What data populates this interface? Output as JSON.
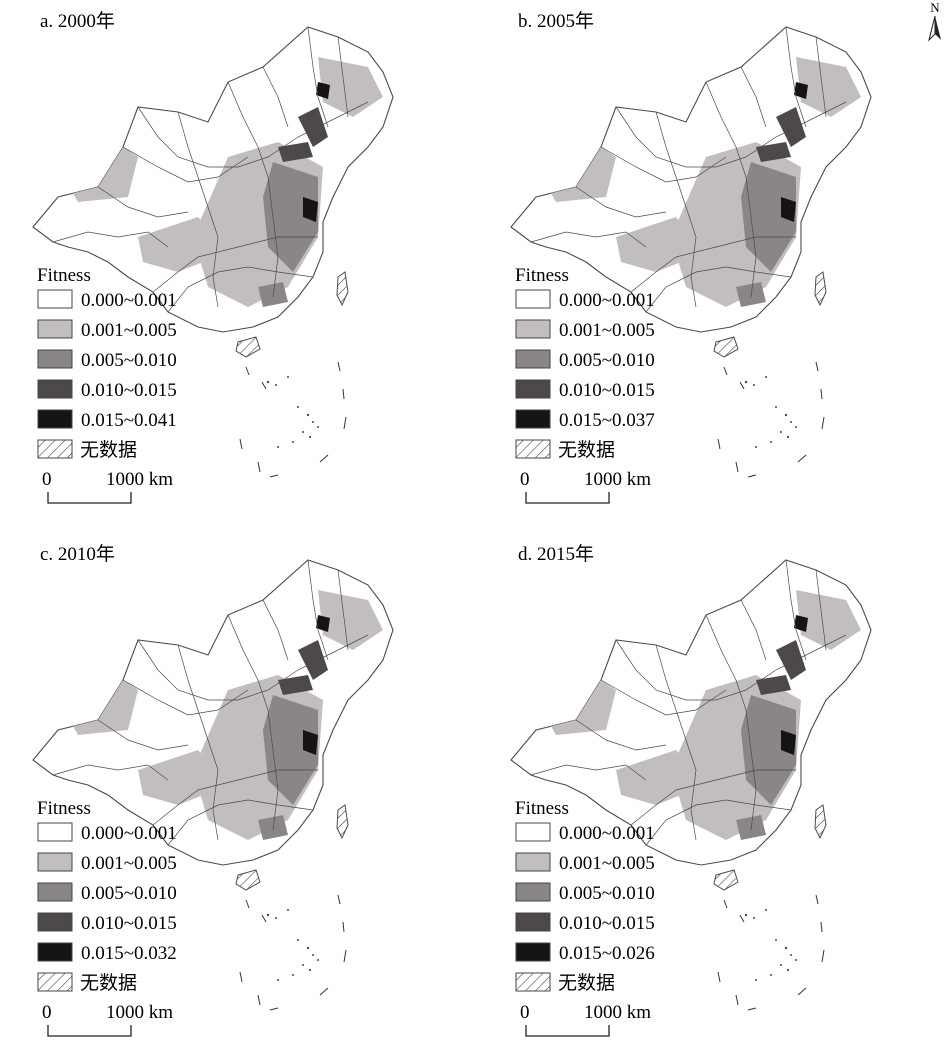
{
  "north_label": "N",
  "nodata_color": "#ffffff",
  "boundary_color": "#4a4a4a",
  "panels": [
    {
      "title": "a. 2000年",
      "legend_title": "Fitness",
      "legend": [
        {
          "label": "0.000~0.001",
          "color": "#ffffff"
        },
        {
          "label": "0.001~0.005",
          "color": "#c2bebe"
        },
        {
          "label": "0.005~0.010",
          "color": "#8a8587"
        },
        {
          "label": "0.010~0.015",
          "color": "#4d494a"
        },
        {
          "label": "0.015~0.041",
          "color": "#151313"
        },
        {
          "label": "无数据",
          "hatched": true
        }
      ],
      "scale": {
        "start": "0",
        "end": "1000 km"
      }
    },
    {
      "title": "b. 2005年",
      "legend_title": "Fitness",
      "legend": [
        {
          "label": "0.000~0.001",
          "color": "#ffffff"
        },
        {
          "label": "0.001~0.005",
          "color": "#c2bebe"
        },
        {
          "label": "0.005~0.010",
          "color": "#8a8587"
        },
        {
          "label": "0.010~0.015",
          "color": "#4d494a"
        },
        {
          "label": "0.015~0.037",
          "color": "#151313"
        },
        {
          "label": "无数据",
          "hatched": true
        }
      ],
      "scale": {
        "start": "0",
        "end": "1000 km"
      }
    },
    {
      "title": "c. 2010年",
      "legend_title": "Fitness",
      "legend": [
        {
          "label": "0.000~0.001",
          "color": "#ffffff"
        },
        {
          "label": "0.001~0.005",
          "color": "#c2bebe"
        },
        {
          "label": "0.005~0.010",
          "color": "#8a8587"
        },
        {
          "label": "0.010~0.015",
          "color": "#4d494a"
        },
        {
          "label": "0.015~0.032",
          "color": "#151313"
        },
        {
          "label": "无数据",
          "hatched": true
        }
      ],
      "scale": {
        "start": "0",
        "end": "1000 km"
      }
    },
    {
      "title": "d. 2015年",
      "legend_title": "Fitness",
      "legend": [
        {
          "label": "0.000~0.001",
          "color": "#ffffff"
        },
        {
          "label": "0.001~0.005",
          "color": "#c2bebe"
        },
        {
          "label": "0.005~0.010",
          "color": "#8a8587"
        },
        {
          "label": "0.010~0.015",
          "color": "#4d494a"
        },
        {
          "label": "0.015~0.026",
          "color": "#151313"
        },
        {
          "label": "无数据",
          "hatched": true
        }
      ],
      "scale": {
        "start": "0",
        "end": "1000 km"
      }
    }
  ]
}
